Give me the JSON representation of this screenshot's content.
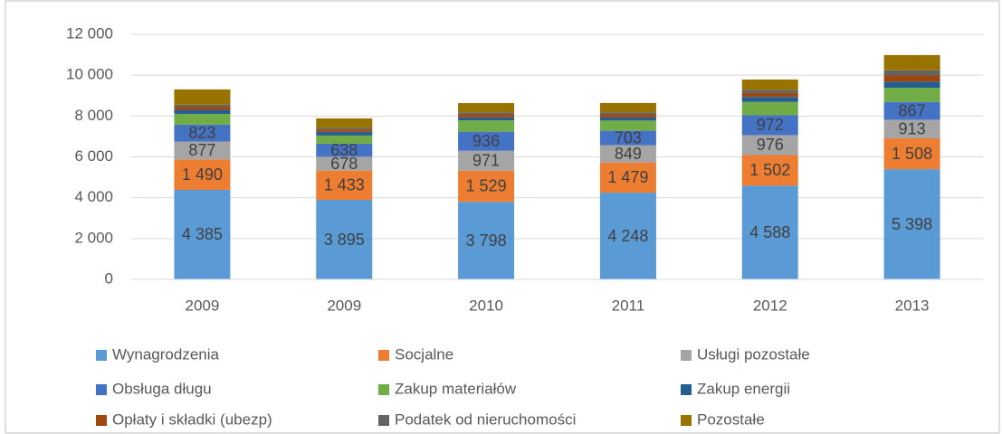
{
  "chart_data": {
    "type": "stacked_bar",
    "categories": [
      "2009",
      "2009",
      "2010",
      "2011",
      "2012",
      "2013"
    ],
    "series": [
      {
        "name": "Wynagrodzenia",
        "color": "#5b9bd5",
        "values": [
          4385,
          3895,
          3798,
          4248,
          4588,
          5398
        ],
        "value_labels": [
          "4 385",
          "3 895",
          "3 798",
          "4 248",
          "4 588",
          "5 398"
        ]
      },
      {
        "name": "Socjalne",
        "color": "#ed7d31",
        "values": [
          1490,
          1433,
          1529,
          1479,
          1502,
          1508
        ],
        "value_labels": [
          "1 490",
          "1 433",
          "1 529",
          "1 479",
          "1 502",
          "1 508"
        ]
      },
      {
        "name": "Usługi pozostałe",
        "color": "#a5a5a5",
        "values": [
          877,
          678,
          971,
          849,
          976,
          913
        ],
        "value_labels": [
          "877",
          "678",
          "971",
          "849",
          "976",
          "913"
        ]
      },
      {
        "name": "Obsługa długu",
        "color": "#4472c4",
        "values": [
          823,
          638,
          936,
          703,
          972,
          867
        ],
        "value_labels": [
          "823",
          "638",
          "936",
          "703",
          "972",
          "867"
        ]
      },
      {
        "name": "Zakup materiałów",
        "color": "#70ad47",
        "values": [
          530,
          400,
          550,
          500,
          650,
          700
        ]
      },
      {
        "name": "Zakup energii",
        "color": "#255e91",
        "values": [
          200,
          180,
          150,
          150,
          250,
          300
        ]
      },
      {
        "name": "Opłaty i składki (ubezp)",
        "color": "#9e480e",
        "values": [
          150,
          120,
          150,
          150,
          200,
          300
        ]
      },
      {
        "name": "Podatek od nieruchomości",
        "color": "#636363",
        "values": [
          100,
          80,
          100,
          100,
          150,
          250
        ]
      },
      {
        "name": "Pozostałe",
        "color": "#997300",
        "values": [
          750,
          460,
          450,
          460,
          500,
          750
        ]
      }
    ],
    "ylim": [
      0,
      12000
    ],
    "yticks": [
      0,
      {
        "value": 2000,
        "label": "2 000"
      },
      {
        "value": 4000,
        "label": "4 000"
      },
      {
        "value": 6000,
        "label": "6 000"
      },
      {
        "value": 8000,
        "label": "8 000"
      },
      {
        "value": 10000,
        "label": "10 000"
      },
      {
        "value": 12000,
        "label": "12 000"
      }
    ],
    "grid": true
  }
}
